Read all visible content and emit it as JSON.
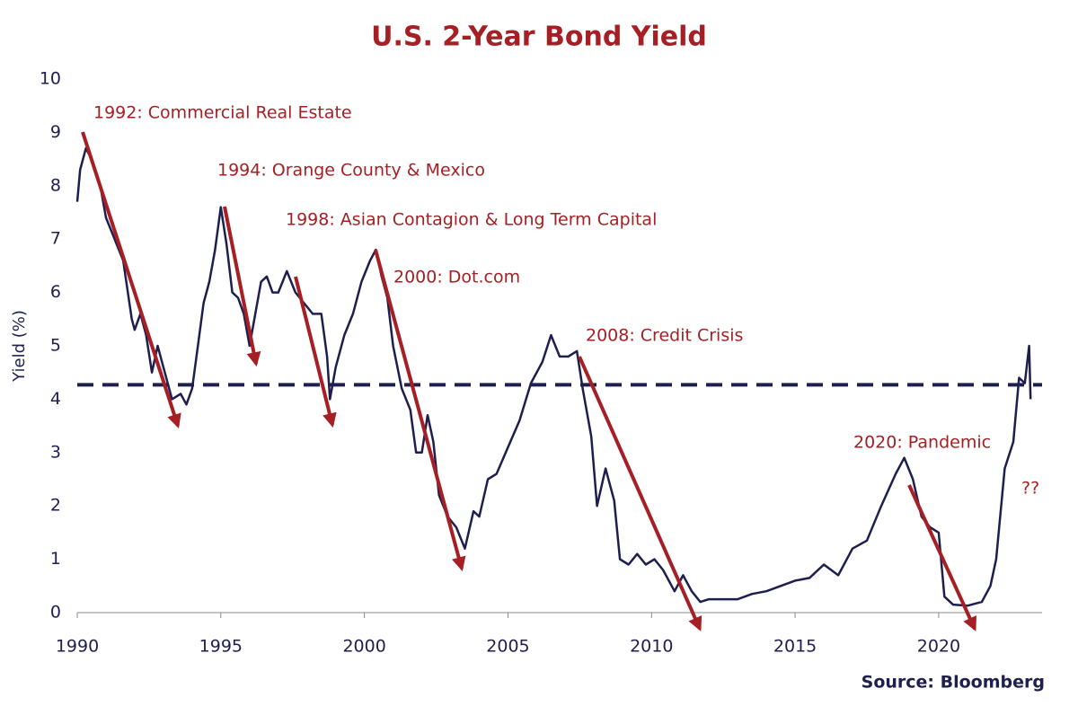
{
  "chart_data": {
    "type": "line",
    "title": "U.S. 2-Year Bond Yield",
    "y_label": "Yield (%)",
    "source": "Source: Bloomberg",
    "xlim": [
      1990,
      2023.6
    ],
    "xticks": [
      1990,
      1995,
      2000,
      2005,
      2010,
      2015,
      2020
    ],
    "ylim": [
      0,
      10
    ],
    "yticks": [
      0,
      1,
      2,
      3,
      4,
      5,
      6,
      7,
      8,
      9,
      10
    ],
    "reference_line": 4.27,
    "color": "#1e1e4f",
    "annotation_color": "#a51f24",
    "annotations": [
      "1992: Commercial Real Estate",
      "1994: Orange County & Mexico",
      "1998: Asian Contagion & Long Term Capital",
      "2000: Dot.com",
      "2008: Credit Crisis",
      "2020: Pandemic",
      "??"
    ],
    "x": [
      1990.0,
      1990.1,
      1990.3,
      1990.5,
      1990.8,
      1991.0,
      1991.3,
      1991.6,
      1991.9,
      1992.0,
      1992.2,
      1992.4,
      1992.6,
      1992.8,
      1993.0,
      1993.3,
      1993.6,
      1993.8,
      1994.0,
      1994.2,
      1994.4,
      1994.6,
      1994.8,
      1995.0,
      1995.2,
      1995.4,
      1995.6,
      1995.8,
      1996.0,
      1996.2,
      1996.4,
      1996.6,
      1996.8,
      1997.0,
      1997.3,
      1997.6,
      1997.9,
      1998.2,
      1998.5,
      1998.7,
      1998.8,
      1999.0,
      1999.3,
      1999.6,
      1999.9,
      2000.2,
      2000.4,
      2000.6,
      2000.8,
      2001.0,
      2001.3,
      2001.6,
      2001.8,
      2002.0,
      2002.2,
      2002.4,
      2002.6,
      2002.9,
      2003.2,
      2003.5,
      2003.8,
      2004.0,
      2004.3,
      2004.6,
      2005.0,
      2005.4,
      2005.8,
      2006.2,
      2006.5,
      2006.8,
      2007.1,
      2007.4,
      2007.6,
      2007.9,
      2008.1,
      2008.4,
      2008.7,
      2008.9,
      2009.2,
      2009.5,
      2009.8,
      2010.1,
      2010.4,
      2010.8,
      2011.1,
      2011.4,
      2011.7,
      2012.0,
      2013.0,
      2013.5,
      2014.0,
      2014.5,
      2015.0,
      2015.5,
      2016.0,
      2016.5,
      2017.0,
      2017.5,
      2018.0,
      2018.5,
      2018.8,
      2019.1,
      2019.4,
      2019.7,
      2020.0,
      2020.2,
      2020.5,
      2021.0,
      2021.5,
      2021.8,
      2022.0,
      2022.3,
      2022.6,
      2022.8,
      2023.0,
      2023.15,
      2023.2
    ],
    "values": [
      7.7,
      8.3,
      8.7,
      8.5,
      8.0,
      7.4,
      7.0,
      6.6,
      5.5,
      5.3,
      5.6,
      5.2,
      4.5,
      5.0,
      4.6,
      4.0,
      4.1,
      3.9,
      4.2,
      5.0,
      5.8,
      6.2,
      6.8,
      7.6,
      6.9,
      6.0,
      5.9,
      5.6,
      5.0,
      5.6,
      6.2,
      6.3,
      6.0,
      6.0,
      6.4,
      6.0,
      5.8,
      5.6,
      5.6,
      4.8,
      4.0,
      4.6,
      5.2,
      5.6,
      6.2,
      6.6,
      6.8,
      6.3,
      5.9,
      5.0,
      4.2,
      3.8,
      3.0,
      3.0,
      3.7,
      3.2,
      2.2,
      1.8,
      1.6,
      1.2,
      1.9,
      1.8,
      2.5,
      2.6,
      3.1,
      3.6,
      4.3,
      4.7,
      5.2,
      4.8,
      4.8,
      4.9,
      4.2,
      3.3,
      2.0,
      2.7,
      2.1,
      1.0,
      0.9,
      1.1,
      0.9,
      1.0,
      0.8,
      0.4,
      0.7,
      0.4,
      0.2,
      0.25,
      0.25,
      0.35,
      0.4,
      0.5,
      0.6,
      0.65,
      0.9,
      0.7,
      1.2,
      1.35,
      2.0,
      2.6,
      2.9,
      2.5,
      1.8,
      1.6,
      1.5,
      0.3,
      0.15,
      0.13,
      0.2,
      0.5,
      1.0,
      2.7,
      3.2,
      4.4,
      4.3,
      5.0,
      4.0
    ]
  }
}
